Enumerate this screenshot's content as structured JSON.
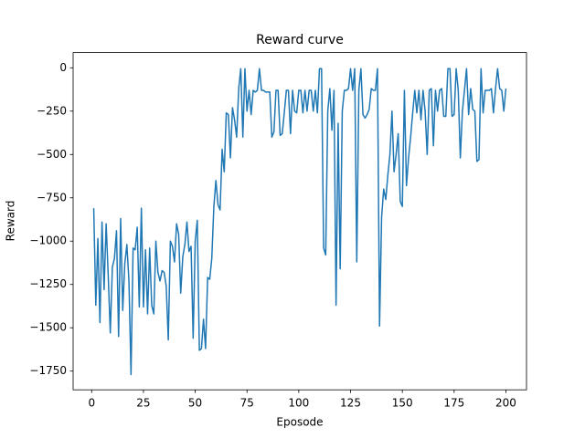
{
  "chart_data": {
    "type": "line",
    "title": "Reward curve",
    "x_label": "Eposode",
    "y_label": "Reward",
    "color": "#1f77b4",
    "x": [
      1,
      2,
      3,
      4,
      5,
      6,
      7,
      8,
      9,
      10,
      11,
      12,
      13,
      14,
      15,
      16,
      17,
      18,
      19,
      20,
      21,
      22,
      23,
      24,
      25,
      26,
      27,
      28,
      29,
      30,
      31,
      32,
      33,
      34,
      35,
      36,
      37,
      38,
      39,
      40,
      41,
      42,
      43,
      44,
      45,
      46,
      47,
      48,
      49,
      50,
      51,
      52,
      53,
      54,
      55,
      56,
      57,
      58,
      59,
      60,
      61,
      62,
      63,
      64,
      65,
      66,
      67,
      68,
      69,
      70,
      71,
      72,
      73,
      74,
      75,
      76,
      77,
      78,
      79,
      80,
      81,
      82,
      83,
      84,
      85,
      86,
      87,
      88,
      89,
      90,
      91,
      92,
      93,
      94,
      95,
      96,
      97,
      98,
      99,
      100,
      101,
      102,
      103,
      104,
      105,
      106,
      107,
      108,
      109,
      110,
      111,
      112,
      113,
      114,
      115,
      116,
      117,
      118,
      119,
      120,
      121,
      122,
      123,
      124,
      125,
      126,
      127,
      128,
      129,
      130,
      131,
      132,
      133,
      134,
      135,
      136,
      137,
      138,
      139,
      140,
      141,
      142,
      143,
      144,
      145,
      146,
      147,
      148,
      149,
      150,
      151,
      152,
      153,
      154,
      155,
      156,
      157,
      158,
      159,
      160,
      161,
      162,
      163,
      164,
      165,
      166,
      167,
      168,
      169,
      170,
      171,
      172,
      173,
      174,
      175,
      176,
      177,
      178,
      179,
      180,
      181,
      182,
      183,
      184,
      185,
      186,
      187,
      188,
      189,
      190,
      191,
      192,
      193,
      194,
      195,
      196,
      197,
      198,
      199,
      200
    ],
    "values": [
      -810,
      -1370,
      -985,
      -1470,
      -890,
      -1280,
      -900,
      -1200,
      -1530,
      -1150,
      -1100,
      -940,
      -1550,
      -870,
      -1400,
      -1130,
      -1020,
      -1230,
      -1770,
      -1040,
      -1050,
      -920,
      -1380,
      -810,
      -1380,
      -1050,
      -1420,
      -1040,
      -1370,
      -1420,
      -1000,
      -1180,
      -1230,
      -1170,
      -1180,
      -1260,
      -1570,
      -1000,
      -1030,
      -1120,
      -900,
      -960,
      -1300,
      -1090,
      -1020,
      -890,
      -1060,
      -1030,
      -1560,
      -1000,
      -880,
      -1630,
      -1620,
      -1450,
      -1620,
      -1210,
      -1220,
      -1100,
      -800,
      -650,
      -790,
      -820,
      -470,
      -600,
      -260,
      -270,
      -520,
      -230,
      -300,
      -400,
      -120,
      -5,
      -400,
      -5,
      -250,
      -130,
      -270,
      -130,
      -140,
      -130,
      -5,
      -130,
      -130,
      -140,
      -140,
      -140,
      -400,
      -370,
      -130,
      -130,
      -390,
      -380,
      -260,
      -130,
      -130,
      -380,
      -130,
      -250,
      -260,
      -130,
      -130,
      -260,
      -130,
      -250,
      -130,
      -130,
      -250,
      -130,
      -260,
      -5,
      -5,
      -1040,
      -1080,
      -250,
      -120,
      -360,
      -130,
      -1370,
      -320,
      -1160,
      -250,
      -130,
      -130,
      -120,
      -5,
      -130,
      -5,
      -1120,
      -130,
      -5,
      -270,
      -290,
      -270,
      -240,
      -120,
      -130,
      -130,
      -5,
      -1490,
      -860,
      -700,
      -760,
      -620,
      -500,
      -250,
      -600,
      -500,
      -380,
      -770,
      -800,
      -130,
      -680,
      -520,
      -400,
      -260,
      -130,
      -260,
      -130,
      -300,
      -130,
      -250,
      -500,
      -130,
      -120,
      -450,
      -130,
      -250,
      -130,
      -120,
      -280,
      -280,
      -5,
      -5,
      -280,
      -270,
      -5,
      -130,
      -520,
      -250,
      -130,
      -5,
      -270,
      -120,
      -240,
      -250,
      -540,
      -530,
      -5,
      -260,
      -130,
      -130,
      -130,
      -120,
      -260,
      -120,
      -5,
      -120,
      -130,
      -250,
      -120
    ],
    "xlim": [
      -8.95,
      209.95
    ],
    "ylim": [
      -1858,
      88
    ],
    "xticks": [
      0,
      25,
      50,
      75,
      100,
      125,
      150,
      175,
      200
    ],
    "yticks": [
      {
        "value": -1750,
        "label": "−1750"
      },
      {
        "value": -1500,
        "label": "−1500"
      },
      {
        "value": -1250,
        "label": "−1250"
      },
      {
        "value": -1000,
        "label": "−1000"
      },
      {
        "value": -750,
        "label": "−750"
      },
      {
        "value": -500,
        "label": "−500"
      },
      {
        "value": -250,
        "label": "−250"
      },
      0
    ]
  }
}
